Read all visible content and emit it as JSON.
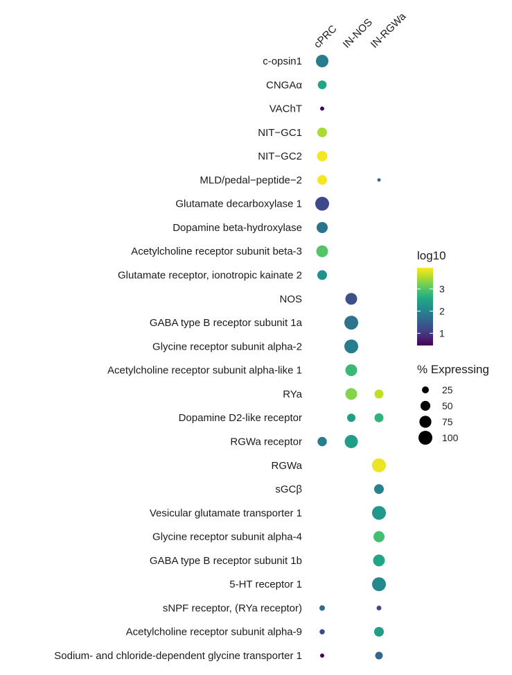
{
  "chart_data": {
    "type": "scatter",
    "subtype": "dot-plot",
    "title": "",
    "xlabel": "",
    "ylabel": "",
    "columns": [
      "cPRC",
      "IN-NOS",
      "IN-RGWa"
    ],
    "rows": [
      "c-opsin1",
      "CNGAα",
      "VAChT",
      "NIT−GC1",
      "NIT−GC2",
      "MLD/pedal−peptide−2",
      "Glutamate decarboxylase 1",
      "Dopamine beta-hydroxylase",
      "Acetylcholine receptor subunit beta-3",
      "Glutamate receptor, ionotropic kainate 2",
      "NOS",
      "GABA type B receptor subunit 1a",
      "Glycine receptor subunit alpha-2",
      "Acetylcholine receptor subunit alpha-like 1",
      "RYa",
      "Dopamine D2-like receptor",
      "RGWa receptor",
      "RGWa",
      "sGCβ",
      "Vesicular glutamate transporter 1",
      "Glycine receptor subunit alpha-4",
      "GABA type B receptor subunit 1b",
      "5-HT receptor 1",
      "sNPF receptor, (RYa receptor)",
      "Acetylcholine receptor subunit alpha-9",
      "Sodium- and chloride-dependent glycine transporter 1"
    ],
    "points": [
      {
        "row": 0,
        "col": 0,
        "pct": 81,
        "log10": 1.9
      },
      {
        "row": 1,
        "col": 0,
        "pct": 40,
        "log10": 2.5
      },
      {
        "row": 2,
        "col": 0,
        "pct": 9,
        "log10": 0.5
      },
      {
        "row": 3,
        "col": 0,
        "pct": 49,
        "log10": 3.5
      },
      {
        "row": 4,
        "col": 0,
        "pct": 56,
        "log10": 3.9
      },
      {
        "row": 5,
        "col": 0,
        "pct": 49,
        "log10": 3.9
      },
      {
        "row": 5,
        "col": 2,
        "pct": 6,
        "log10": 1.6
      },
      {
        "row": 6,
        "col": 0,
        "pct": 100,
        "log10": 1.2
      },
      {
        "row": 7,
        "col": 0,
        "pct": 64,
        "log10": 1.8
      },
      {
        "row": 8,
        "col": 0,
        "pct": 72,
        "log10": 3.0
      },
      {
        "row": 9,
        "col": 0,
        "pct": 49,
        "log10": 2.2
      },
      {
        "row": 10,
        "col": 1,
        "pct": 72,
        "log10": 1.3
      },
      {
        "row": 11,
        "col": 1,
        "pct": 100,
        "log10": 1.8
      },
      {
        "row": 12,
        "col": 1,
        "pct": 100,
        "log10": 1.9
      },
      {
        "row": 13,
        "col": 1,
        "pct": 72,
        "log10": 2.8
      },
      {
        "row": 14,
        "col": 1,
        "pct": 72,
        "log10": 3.3
      },
      {
        "row": 14,
        "col": 2,
        "pct": 42,
        "log10": 3.6
      },
      {
        "row": 15,
        "col": 1,
        "pct": 36,
        "log10": 2.4
      },
      {
        "row": 15,
        "col": 2,
        "pct": 42,
        "log10": 2.7
      },
      {
        "row": 16,
        "col": 0,
        "pct": 45,
        "log10": 1.9
      },
      {
        "row": 16,
        "col": 1,
        "pct": 90,
        "log10": 2.4
      },
      {
        "row": 17,
        "col": 2,
        "pct": 100,
        "log10": 3.85
      },
      {
        "row": 18,
        "col": 2,
        "pct": 49,
        "log10": 2.0
      },
      {
        "row": 19,
        "col": 2,
        "pct": 100,
        "log10": 2.3
      },
      {
        "row": 20,
        "col": 2,
        "pct": 64,
        "log10": 2.9
      },
      {
        "row": 21,
        "col": 2,
        "pct": 72,
        "log10": 2.5
      },
      {
        "row": 22,
        "col": 2,
        "pct": 100,
        "log10": 2.1
      },
      {
        "row": 23,
        "col": 0,
        "pct": 16,
        "log10": 1.7
      },
      {
        "row": 23,
        "col": 2,
        "pct": 12,
        "log10": 1.2
      },
      {
        "row": 24,
        "col": 0,
        "pct": 14,
        "log10": 1.2
      },
      {
        "row": 24,
        "col": 2,
        "pct": 49,
        "log10": 2.4
      },
      {
        "row": 25,
        "col": 0,
        "pct": 9,
        "log10": 0.5
      },
      {
        "row": 25,
        "col": 2,
        "pct": 30,
        "log10": 1.6
      }
    ],
    "color_scale": {
      "title": "log10",
      "palette": "viridis",
      "range": [
        0.45,
        3.95
      ],
      "ticks": [
        "1",
        "2",
        "3"
      ]
    },
    "size_scale": {
      "title": "% Expressing",
      "ticks": [
        "25",
        "50",
        "75",
        "100"
      ]
    },
    "legend_placement": "right",
    "grid": false
  }
}
